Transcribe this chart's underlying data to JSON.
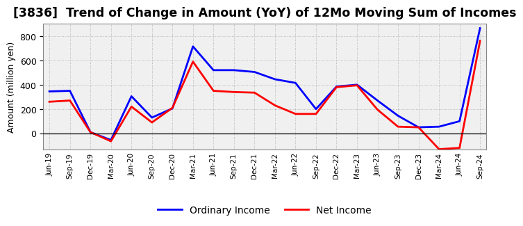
{
  "title": "[3836]  Trend of Change in Amount (YoY) of 12Mo Moving Sum of Incomes",
  "ylabel": "Amount (million yen)",
  "labels": [
    "Jun-19",
    "Sep-19",
    "Dec-19",
    "Mar-20",
    "Jun-20",
    "Sep-20",
    "Dec-20",
    "Mar-21",
    "Jun-21",
    "Sep-21",
    "Dec-21",
    "Mar-22",
    "Jun-22",
    "Sep-22",
    "Dec-22",
    "Mar-23",
    "Jun-23",
    "Sep-23",
    "Dec-23",
    "Mar-24",
    "Jun-24",
    "Sep-24"
  ],
  "ordinary_income": [
    345,
    350,
    10,
    -55,
    305,
    130,
    205,
    715,
    520,
    520,
    505,
    445,
    415,
    200,
    385,
    400,
    270,
    145,
    50,
    55,
    100,
    865
  ],
  "net_income": [
    260,
    270,
    10,
    -65,
    220,
    90,
    210,
    590,
    350,
    340,
    335,
    230,
    160,
    160,
    380,
    395,
    195,
    55,
    50,
    -130,
    -120,
    760
  ],
  "ordinary_color": "#0000FF",
  "net_color": "#FF0000",
  "background_color": "#FFFFFF",
  "plot_bg_color": "#F0F0F0",
  "grid_color": "#999999",
  "ylim_min": -130,
  "ylim_max": 900,
  "yticks": [
    0,
    200,
    400,
    600,
    800
  ],
  "title_fontsize": 12.5,
  "legend_labels": [
    "Ordinary Income",
    "Net Income"
  ]
}
